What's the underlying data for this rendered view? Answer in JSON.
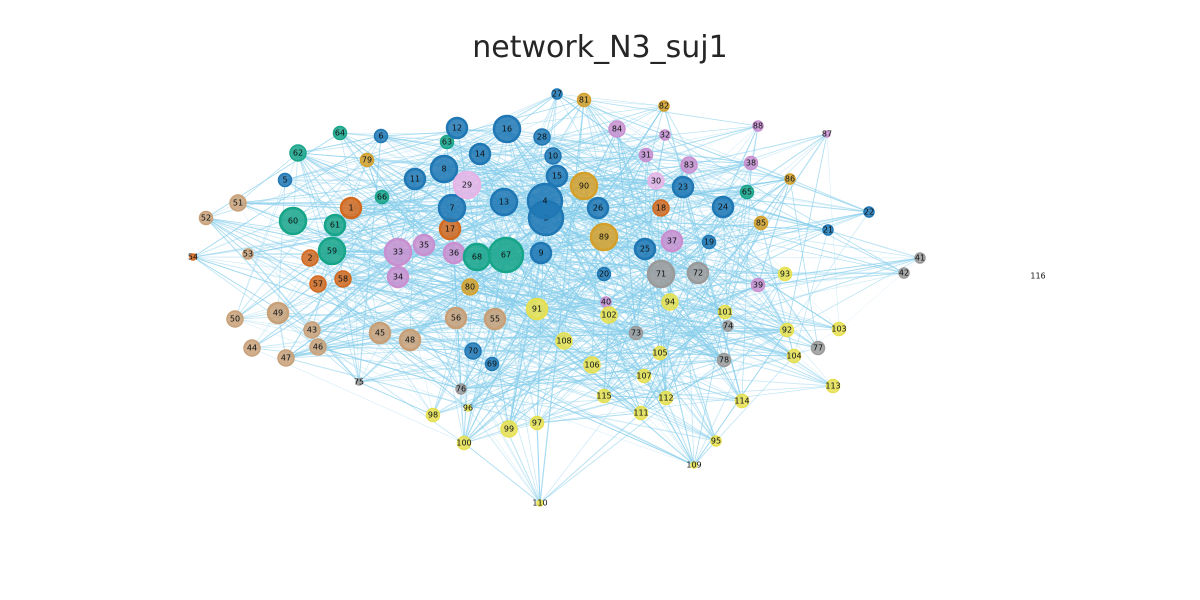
{
  "title": "network_N3_suj1",
  "colors": {
    "edge": "#87ceeb",
    "blue": "#1f77b4",
    "teal": "#17a589",
    "orange": "#d2691e",
    "gold": "#d4a02c",
    "pink": "#c890d0",
    "lightpink": "#e6b4e6",
    "tan": "#c8a078",
    "yellow": "#e6e050",
    "gray": "#9a9a9a"
  },
  "nodes": [
    {
      "id": "1",
      "group": "orange",
      "size": "m"
    },
    {
      "id": "2",
      "group": "orange",
      "size": "s"
    },
    {
      "id": "3",
      "group": "blue",
      "size": "xl"
    },
    {
      "id": "4",
      "group": "blue",
      "size": "xl"
    },
    {
      "id": "5",
      "group": "blue",
      "size": "xs"
    },
    {
      "id": "6",
      "group": "blue",
      "size": "xs"
    },
    {
      "id": "7",
      "group": "blue",
      "size": "l"
    },
    {
      "id": "8",
      "group": "blue",
      "size": "l"
    },
    {
      "id": "9",
      "group": "blue",
      "size": "m"
    },
    {
      "id": "10",
      "group": "blue",
      "size": "s"
    },
    {
      "id": "11",
      "group": "blue",
      "size": "m"
    },
    {
      "id": "12",
      "group": "blue",
      "size": "m"
    },
    {
      "id": "13",
      "group": "blue",
      "size": "l"
    },
    {
      "id": "14",
      "group": "blue",
      "size": "m"
    },
    {
      "id": "15",
      "group": "blue",
      "size": "m"
    },
    {
      "id": "16",
      "group": "blue",
      "size": "l"
    },
    {
      "id": "17",
      "group": "orange",
      "size": "m"
    },
    {
      "id": "18",
      "group": "orange",
      "size": "s"
    },
    {
      "id": "19",
      "group": "blue",
      "size": "xs"
    },
    {
      "id": "20",
      "group": "blue",
      "size": "xs"
    },
    {
      "id": "21",
      "group": "blue",
      "size": "xxs"
    },
    {
      "id": "22",
      "group": "blue",
      "size": "xxs"
    },
    {
      "id": "23",
      "group": "blue",
      "size": "m"
    },
    {
      "id": "24",
      "group": "blue",
      "size": "m"
    },
    {
      "id": "25",
      "group": "blue",
      "size": "m"
    },
    {
      "id": "26",
      "group": "blue",
      "size": "m"
    },
    {
      "id": "27",
      "group": "blue",
      "size": "xxs"
    },
    {
      "id": "28",
      "group": "blue",
      "size": "s"
    },
    {
      "id": "29",
      "group": "lightpink",
      "size": "l"
    },
    {
      "id": "30",
      "group": "lightpink",
      "size": "s"
    },
    {
      "id": "31",
      "group": "pink",
      "size": "xs"
    },
    {
      "id": "32",
      "group": "pink",
      "size": "xxs"
    },
    {
      "id": "33",
      "group": "pink",
      "size": "l"
    },
    {
      "id": "34",
      "group": "pink",
      "size": "m"
    },
    {
      "id": "35",
      "group": "pink",
      "size": "m"
    },
    {
      "id": "36",
      "group": "pink",
      "size": "m"
    },
    {
      "id": "37",
      "group": "pink",
      "size": "m"
    },
    {
      "id": "38",
      "group": "pink",
      "size": "xs"
    },
    {
      "id": "39",
      "group": "pink",
      "size": "xs"
    },
    {
      "id": "40",
      "group": "pink",
      "size": "xxs"
    },
    {
      "id": "41",
      "group": "gray",
      "size": "xxs"
    },
    {
      "id": "42",
      "group": "gray",
      "size": "xxs"
    },
    {
      "id": "43",
      "group": "tan",
      "size": "s"
    },
    {
      "id": "44",
      "group": "tan",
      "size": "s"
    },
    {
      "id": "45",
      "group": "tan",
      "size": "m"
    },
    {
      "id": "46",
      "group": "tan",
      "size": "s"
    },
    {
      "id": "47",
      "group": "tan",
      "size": "s"
    },
    {
      "id": "48",
      "group": "tan",
      "size": "m"
    },
    {
      "id": "49",
      "group": "tan",
      "size": "m"
    },
    {
      "id": "50",
      "group": "tan",
      "size": "s"
    },
    {
      "id": "51",
      "group": "tan",
      "size": "s"
    },
    {
      "id": "52",
      "group": "tan",
      "size": "xs"
    },
    {
      "id": "53",
      "group": "tan",
      "size": "xxs"
    },
    {
      "id": "54",
      "group": "orange",
      "size": "dot"
    },
    {
      "id": "55",
      "group": "tan",
      "size": "m"
    },
    {
      "id": "56",
      "group": "tan",
      "size": "m"
    },
    {
      "id": "57",
      "group": "orange",
      "size": "s"
    },
    {
      "id": "58",
      "group": "orange",
      "size": "s"
    },
    {
      "id": "59",
      "group": "teal",
      "size": "l"
    },
    {
      "id": "60",
      "group": "teal",
      "size": "l"
    },
    {
      "id": "61",
      "group": "teal",
      "size": "m"
    },
    {
      "id": "62",
      "group": "teal",
      "size": "s"
    },
    {
      "id": "63",
      "group": "teal",
      "size": "xs"
    },
    {
      "id": "64",
      "group": "teal",
      "size": "xs"
    },
    {
      "id": "65",
      "group": "teal",
      "size": "xs"
    },
    {
      "id": "66",
      "group": "teal",
      "size": "xs"
    },
    {
      "id": "67",
      "group": "teal",
      "size": "xl"
    },
    {
      "id": "68",
      "group": "teal",
      "size": "l"
    },
    {
      "id": "69",
      "group": "blue",
      "size": "xs"
    },
    {
      "id": "70",
      "group": "blue",
      "size": "s"
    },
    {
      "id": "71",
      "group": "gray",
      "size": "l"
    },
    {
      "id": "72",
      "group": "gray",
      "size": "m"
    },
    {
      "id": "73",
      "group": "gray",
      "size": "xs"
    },
    {
      "id": "74",
      "group": "gray",
      "size": "xxs"
    },
    {
      "id": "75",
      "group": "gray",
      "size": "dot"
    },
    {
      "id": "76",
      "group": "gray",
      "size": "xxs"
    },
    {
      "id": "77",
      "group": "gray",
      "size": "xs"
    },
    {
      "id": "78",
      "group": "gray",
      "size": "xs"
    },
    {
      "id": "79",
      "group": "gold",
      "size": "xs"
    },
    {
      "id": "80",
      "group": "gold",
      "size": "s"
    },
    {
      "id": "81",
      "group": "gold",
      "size": "xs"
    },
    {
      "id": "82",
      "group": "gold",
      "size": "xxs"
    },
    {
      "id": "83",
      "group": "pink",
      "size": "s"
    },
    {
      "id": "84",
      "group": "pink",
      "size": "s"
    },
    {
      "id": "85",
      "group": "gold",
      "size": "xs"
    },
    {
      "id": "86",
      "group": "gold",
      "size": "xxs"
    },
    {
      "id": "87",
      "group": "pink",
      "size": "dot"
    },
    {
      "id": "88",
      "group": "pink",
      "size": "xxs"
    },
    {
      "id": "89",
      "group": "gold",
      "size": "l"
    },
    {
      "id": "90",
      "group": "gold",
      "size": "l"
    },
    {
      "id": "91",
      "group": "yellow",
      "size": "m"
    },
    {
      "id": "92",
      "group": "yellow",
      "size": "xs"
    },
    {
      "id": "93",
      "group": "yellow",
      "size": "xs"
    },
    {
      "id": "94",
      "group": "yellow",
      "size": "s"
    },
    {
      "id": "95",
      "group": "yellow",
      "size": "xxs"
    },
    {
      "id": "96",
      "group": "yellow",
      "size": "dot"
    },
    {
      "id": "97",
      "group": "yellow",
      "size": "xs"
    },
    {
      "id": "98",
      "group": "yellow",
      "size": "xs"
    },
    {
      "id": "99",
      "group": "yellow",
      "size": "s"
    },
    {
      "id": "100",
      "group": "yellow",
      "size": "xs"
    },
    {
      "id": "101",
      "group": "yellow",
      "size": "xs"
    },
    {
      "id": "102",
      "group": "yellow",
      "size": "s"
    },
    {
      "id": "103",
      "group": "yellow",
      "size": "xs"
    },
    {
      "id": "104",
      "group": "yellow",
      "size": "xs"
    },
    {
      "id": "105",
      "group": "yellow",
      "size": "xs"
    },
    {
      "id": "106",
      "group": "yellow",
      "size": "s"
    },
    {
      "id": "107",
      "group": "yellow",
      "size": "xs"
    },
    {
      "id": "108",
      "group": "yellow",
      "size": "s"
    },
    {
      "id": "109",
      "group": "yellow",
      "size": "dot"
    },
    {
      "id": "110",
      "group": "yellow",
      "size": "dot"
    },
    {
      "id": "111",
      "group": "yellow",
      "size": "xs"
    },
    {
      "id": "112",
      "group": "yellow",
      "size": "xs"
    },
    {
      "id": "113",
      "group": "yellow",
      "size": "xs"
    },
    {
      "id": "114",
      "group": "yellow",
      "size": "xs"
    },
    {
      "id": "115",
      "group": "yellow",
      "size": "xs"
    },
    {
      "id": "116",
      "group": "gray",
      "size": "none"
    }
  ]
}
